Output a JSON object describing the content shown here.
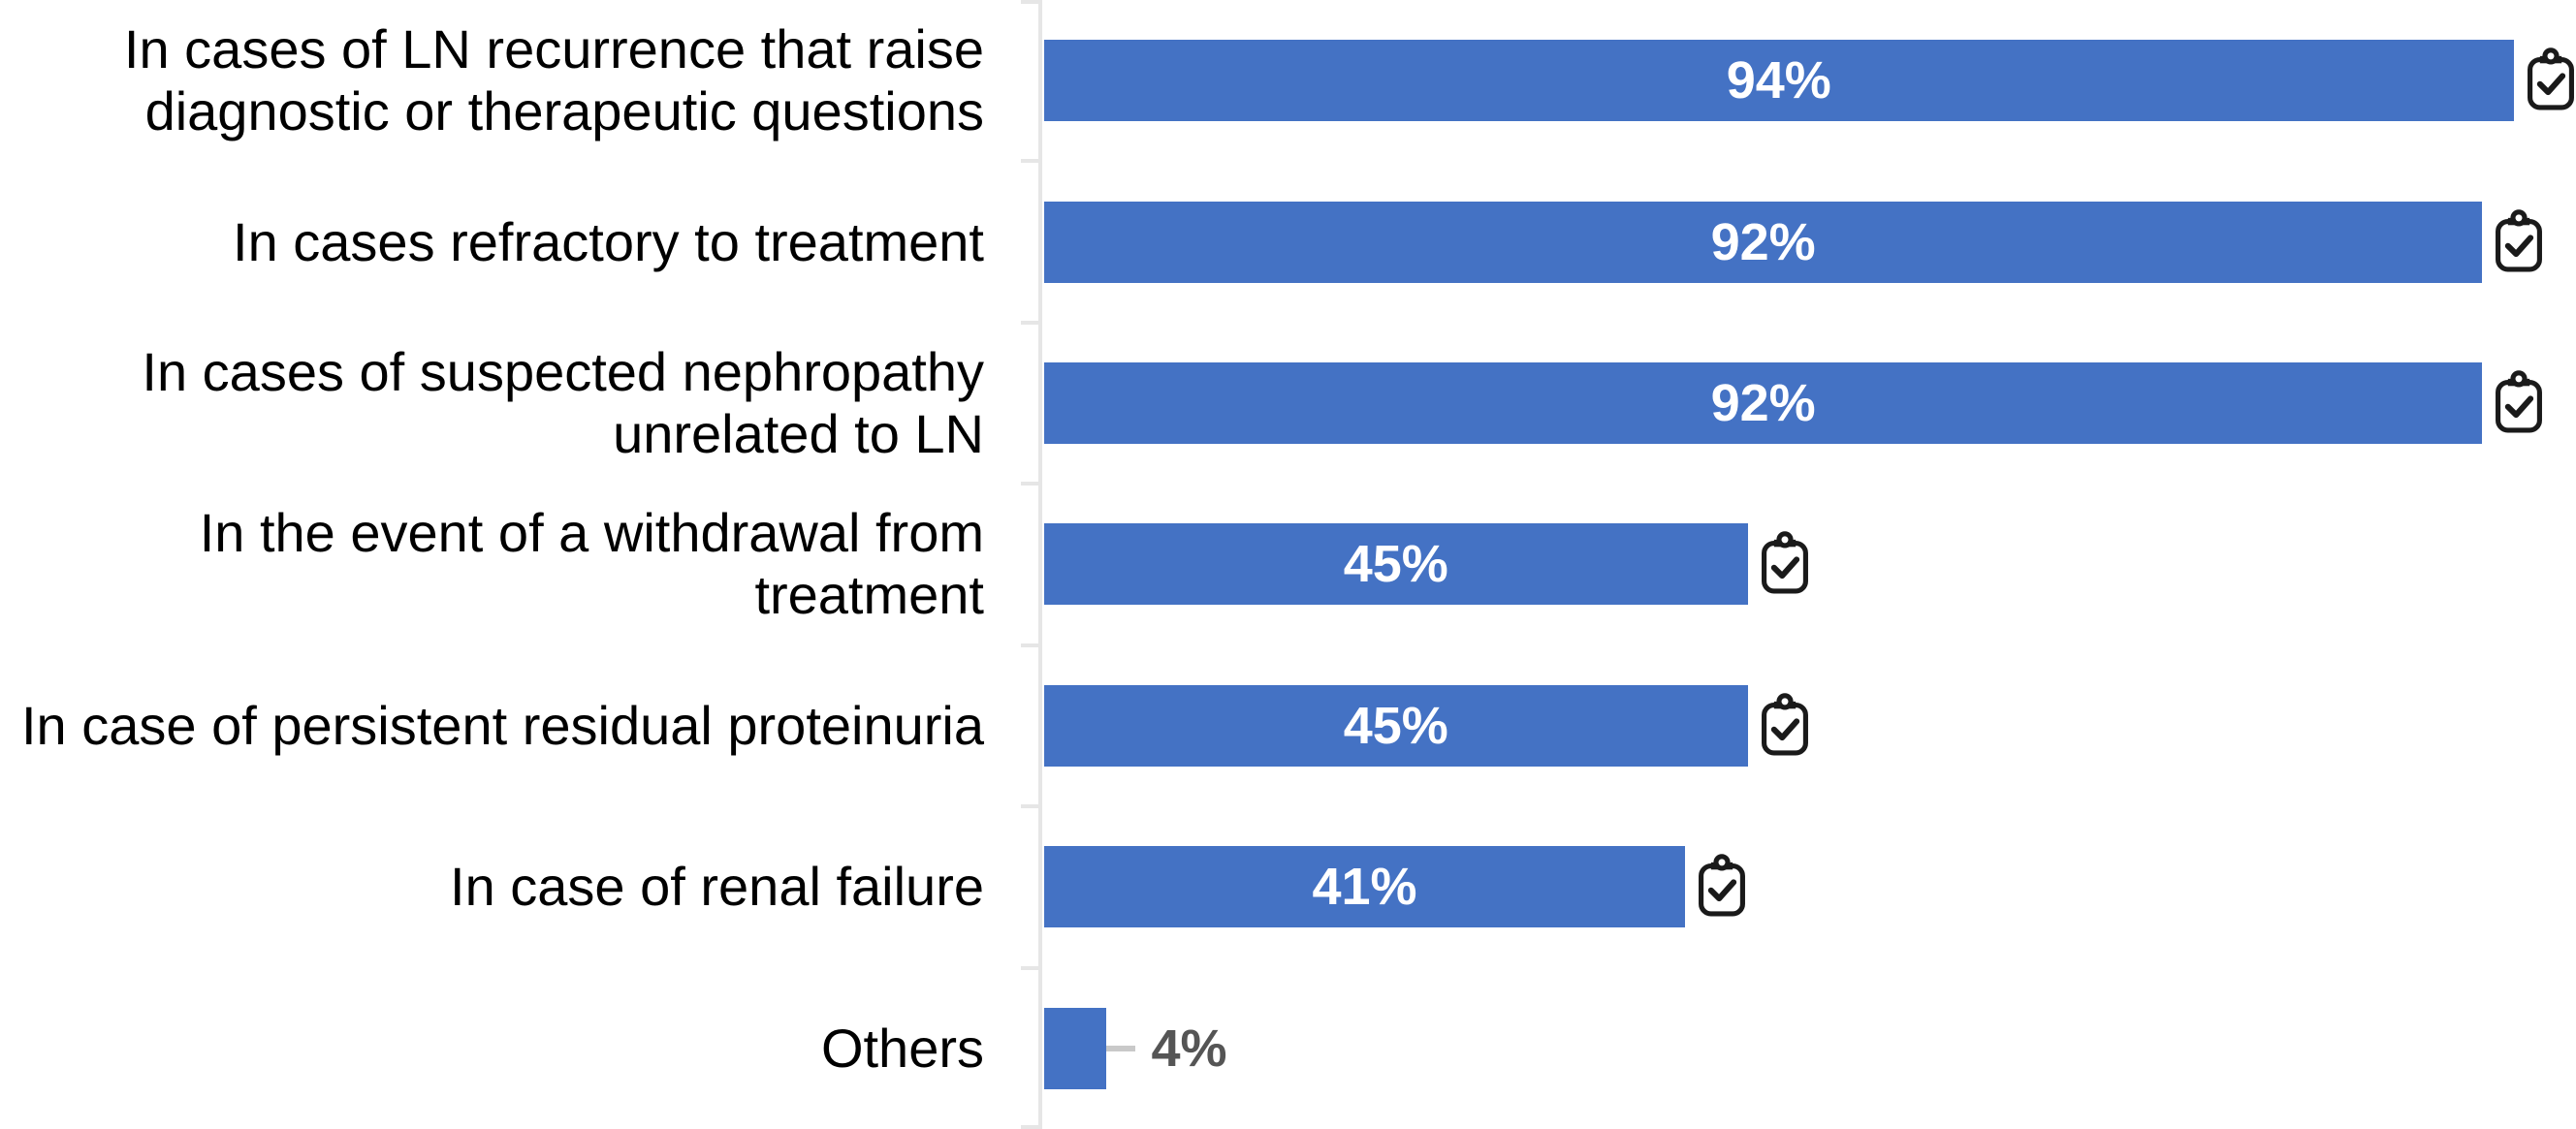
{
  "chart_data": {
    "type": "bar",
    "orientation": "horizontal",
    "title": "",
    "xlabel": "",
    "ylabel": "",
    "grid": false,
    "legend": false,
    "xlim": [
      0,
      98
    ],
    "categories": [
      "In cases of LN recurrence that raise\ndiagnostic or therapeutic questions",
      "In cases refractory to treatment",
      "In cases of suspected nephropathy\nunrelated to LN",
      "In the event of a withdrawal from\ntreatment",
      "In case of persistent residual proteinuria",
      "In case of renal failure",
      "Others"
    ],
    "values": [
      94,
      92,
      92,
      45,
      45,
      41,
      4
    ],
    "value_labels": [
      "94%",
      "92%",
      "92%",
      "45%",
      "45%",
      "41%",
      "4%"
    ],
    "value_label_position": [
      "inside",
      "inside",
      "inside",
      "inside",
      "inside",
      "inside",
      "outside"
    ],
    "bar_color": "#4472C4",
    "value_label_color_inside": "#FFFFFF",
    "value_label_color_outside": "#555555",
    "axis_color": "#E6E6E6",
    "leader_line_color": "#C9C9C9",
    "end_icon": "clipboard-check-icon",
    "end_icon_color": "#1A1A1A"
  }
}
